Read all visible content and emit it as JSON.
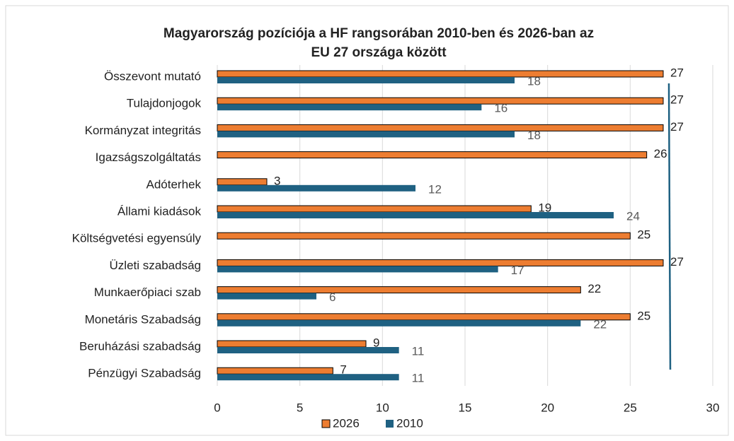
{
  "chart_data": {
    "type": "bar",
    "orientation": "horizontal",
    "title": [
      "Magyarország pozíciója a HF rangsorában 2010-ben és 2026-ban az",
      "EU 27 országa között"
    ],
    "categories": [
      "Összevont mutató",
      "Tulajdonjogok",
      "Kormányzat integritás",
      "Igazságszolgáltatás",
      "Adóterhek",
      "Állami kiadások",
      "Költségvetési egyensúly",
      "Üzleti szabadság",
      "Munkaerőpiaci szab",
      "Monetáris Szabadság",
      "Beruházási szabadság",
      "Pénzügyi Szabadság"
    ],
    "series": [
      {
        "name": "2026",
        "color": "#ed7d31",
        "values": [
          27,
          27,
          27,
          26,
          3,
          19,
          25,
          27,
          22,
          25,
          9,
          7
        ]
      },
      {
        "name": "2010",
        "color": "#1f6182",
        "values": [
          18,
          16,
          18,
          null,
          12,
          24,
          null,
          17,
          6,
          22,
          11,
          11
        ]
      }
    ],
    "xlim": [
      0,
      30
    ],
    "xticks": [
      0,
      5,
      10,
      15,
      20,
      25,
      30
    ],
    "grid": true,
    "legend": "bottom"
  }
}
